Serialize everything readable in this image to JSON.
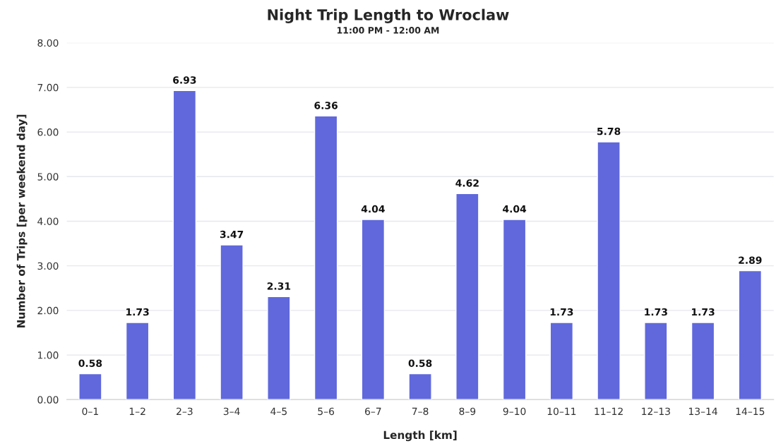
{
  "chart_data": {
    "type": "bar",
    "title": "Night Trip Length to Wroclaw",
    "subtitle": "11:00 PM - 12:00 AM",
    "xlabel": "Length [km]",
    "ylabel": "Number of Trips [per weekend day]",
    "categories": [
      "0–1",
      "1–2",
      "2–3",
      "3–4",
      "4–5",
      "5–6",
      "6–7",
      "7–8",
      "8–9",
      "9–10",
      "10–11",
      "11–12",
      "12–13",
      "13–14",
      "14–15"
    ],
    "values": [
      0.58,
      1.73,
      6.93,
      3.47,
      2.31,
      6.36,
      4.04,
      0.58,
      4.62,
      4.04,
      1.73,
      5.78,
      1.73,
      1.73,
      2.89
    ],
    "color": "#6068dc",
    "ylim": [
      0,
      8
    ],
    "yticks": [
      {
        "value": 0,
        "label": "0.00"
      },
      {
        "value": 1,
        "label": "1.00"
      },
      {
        "value": 2,
        "label": "2.00"
      },
      {
        "value": 3,
        "label": "3.00"
      },
      {
        "value": 4,
        "label": "4.00"
      },
      {
        "value": 5,
        "label": "5.00"
      },
      {
        "value": 6,
        "label": "6.00"
      },
      {
        "value": 7,
        "label": "7.00"
      },
      {
        "value": 8,
        "label": "8.00"
      }
    ],
    "grid": "y",
    "data_labels": true
  }
}
